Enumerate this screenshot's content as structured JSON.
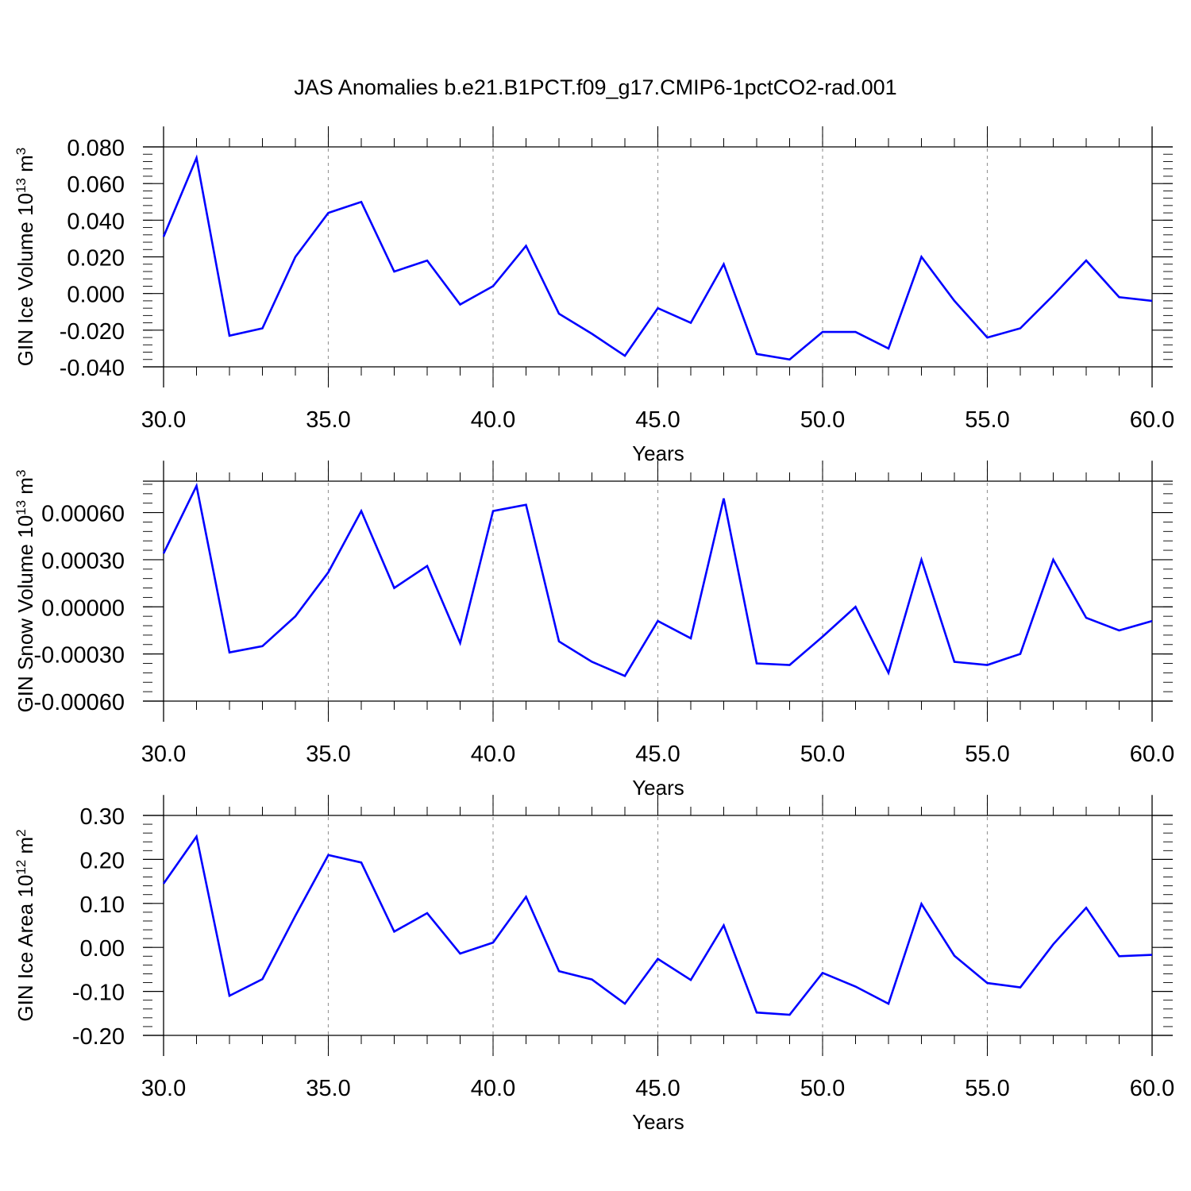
{
  "title": "JAS Anomalies b.e21.B1PCT.f09_g17.CMIP6-1pctCO2-rad.001",
  "colors": {
    "series": "#0000ff",
    "axis": "#000000",
    "grid": "#9a9a9a"
  },
  "chart_data": [
    {
      "type": "line",
      "title": "",
      "xlabel": "Years",
      "ylabel": "GIN Ice Volume 10",
      "ylabel_exp": "13",
      "ylabel_unit": " m",
      "ylabel_unit_exp": "3",
      "xlim": [
        30,
        60
      ],
      "ylim": [
        -0.04,
        0.08
      ],
      "xticks": [
        "30.0",
        "35.0",
        "40.0",
        "45.0",
        "50.0",
        "55.0",
        "60.0"
      ],
      "yticks": [
        {
          "v": 0.08,
          "label": "0.080"
        },
        {
          "v": 0.06,
          "label": "0.060"
        },
        {
          "v": 0.04,
          "label": "0.040"
        },
        {
          "v": 0.02,
          "label": "0.020"
        },
        {
          "v": 0.0,
          "label": "0.000"
        },
        {
          "v": -0.02,
          "label": "-0.020"
        },
        {
          "v": -0.04,
          "label": "-0.040"
        }
      ],
      "grid": "vertical dashed at major x ticks",
      "series": [
        {
          "x": [
            30,
            31,
            32,
            33,
            34,
            35,
            36,
            37,
            38,
            39,
            40,
            41,
            42,
            43,
            44,
            45,
            46,
            47,
            48,
            49,
            50,
            51,
            52,
            53,
            54,
            55,
            56,
            57,
            58,
            59,
            60
          ],
          "values": [
            0.031,
            0.074,
            -0.023,
            -0.019,
            0.02,
            0.044,
            0.05,
            0.012,
            0.018,
            -0.006,
            0.004,
            0.026,
            -0.011,
            -0.022,
            -0.034,
            -0.008,
            -0.016,
            0.016,
            -0.033,
            -0.036,
            -0.021,
            -0.021,
            -0.03,
            0.02,
            -0.004,
            -0.024,
            -0.019,
            -0.001,
            0.018,
            -0.002,
            -0.004
          ]
        }
      ]
    },
    {
      "type": "line",
      "title": "",
      "xlabel": "Years",
      "ylabel": "GIN Snow Volume 10",
      "ylabel_exp": "13",
      "ylabel_unit": " m",
      "ylabel_unit_exp": "3",
      "xlim": [
        30,
        60
      ],
      "ylim": [
        -0.0006,
        0.0008
      ],
      "xticks": [
        "30.0",
        "35.0",
        "40.0",
        "45.0",
        "50.0",
        "55.0",
        "60.0"
      ],
      "yticks": [
        {
          "v": 0.0006,
          "label": "0.00060"
        },
        {
          "v": 0.0003,
          "label": "0.00030"
        },
        {
          "v": 0.0,
          "label": "0.00000"
        },
        {
          "v": -0.0003,
          "label": "-0.00030"
        },
        {
          "v": -0.0006,
          "label": "-0.00060"
        }
      ],
      "grid": "vertical dashed at major x ticks",
      "series": [
        {
          "x": [
            30,
            31,
            32,
            33,
            34,
            35,
            36,
            37,
            38,
            39,
            40,
            41,
            42,
            43,
            44,
            45,
            46,
            47,
            48,
            49,
            50,
            51,
            52,
            53,
            54,
            55,
            56,
            57,
            58,
            59,
            60
          ],
          "values": [
            0.00034,
            0.00077,
            -0.00029,
            -0.00025,
            -6e-05,
            0.00022,
            0.00061,
            0.00012,
            0.00026,
            -0.00023,
            0.00061,
            0.00065,
            -0.00022,
            -0.00035,
            -0.00044,
            -9e-05,
            -0.0002,
            0.00069,
            -0.00036,
            -0.00037,
            -0.00019,
            0.0,
            -0.00042,
            0.0003,
            -0.00035,
            -0.00037,
            -0.0003,
            0.0003,
            -7e-05,
            -0.00015,
            -9e-05
          ]
        }
      ]
    },
    {
      "type": "line",
      "title": "",
      "xlabel": "Years",
      "ylabel": "GIN Ice Area 10",
      "ylabel_exp": "12",
      "ylabel_unit": " m",
      "ylabel_unit_exp": "2",
      "xlim": [
        30,
        60
      ],
      "ylim": [
        -0.2,
        0.3
      ],
      "xticks": [
        "30.0",
        "35.0",
        "40.0",
        "45.0",
        "50.0",
        "55.0",
        "60.0"
      ],
      "yticks": [
        {
          "v": 0.3,
          "label": "0.30"
        },
        {
          "v": 0.2,
          "label": "0.20"
        },
        {
          "v": 0.1,
          "label": "0.10"
        },
        {
          "v": 0.0,
          "label": "0.00"
        },
        {
          "v": -0.1,
          "label": "-0.10"
        },
        {
          "v": -0.2,
          "label": "-0.20"
        }
      ],
      "grid": "vertical dashed at major x ticks",
      "series": [
        {
          "x": [
            30,
            31,
            32,
            33,
            34,
            35,
            36,
            37,
            38,
            39,
            40,
            41,
            42,
            43,
            44,
            45,
            46,
            47,
            48,
            49,
            50,
            51,
            52,
            53,
            54,
            55,
            56,
            57,
            58,
            59,
            60
          ],
          "values": [
            0.145,
            0.252,
            -0.11,
            -0.072,
            0.072,
            0.21,
            0.193,
            0.036,
            0.078,
            -0.014,
            0.011,
            0.115,
            -0.054,
            -0.073,
            -0.128,
            -0.026,
            -0.074,
            0.05,
            -0.148,
            -0.153,
            -0.058,
            -0.089,
            -0.128,
            0.099,
            -0.019,
            -0.081,
            -0.091,
            0.007,
            0.09,
            -0.02,
            -0.017
          ]
        }
      ]
    }
  ]
}
